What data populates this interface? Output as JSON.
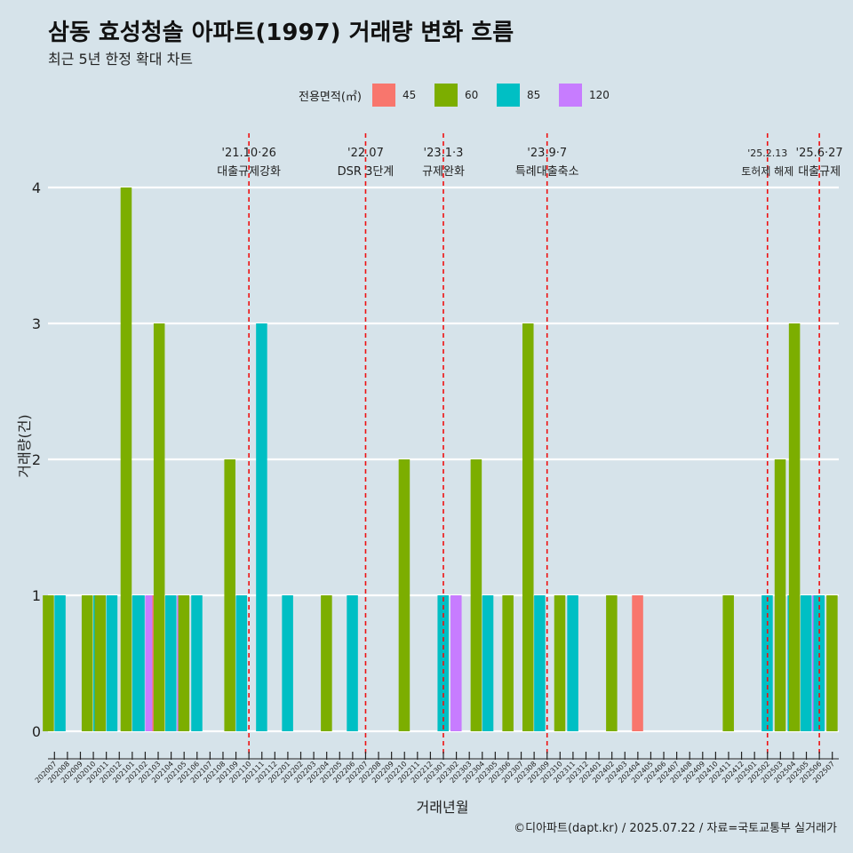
{
  "header": {
    "title": "삼동 효성청솔 아파트(1997) 거래량 변화 흐름",
    "subtitle": "최근 5년 한정 확대 차트"
  },
  "caption": "©디아파트(dapt.kr) / 2025.07.22 / 자료=국토교통부 실거래가",
  "legend": {
    "title": "전용면적(㎡)",
    "items": [
      {
        "label": "45",
        "color": "#F8766D"
      },
      {
        "label": "60",
        "color": "#7CAE00"
      },
      {
        "label": "85",
        "color": "#00BFC4"
      },
      {
        "label": "120",
        "color": "#C77CFF"
      }
    ]
  },
  "chart_data": {
    "type": "bar",
    "xlabel": "거래년월",
    "ylabel": "거래량(건)",
    "ylim": [
      0,
      4
    ],
    "yticks": [
      0,
      1,
      2,
      3,
      4
    ],
    "grid": true,
    "legend_position": "top",
    "categories": [
      "202007",
      "202008",
      "202009",
      "202010",
      "202011",
      "202012",
      "202101",
      "202102",
      "202103",
      "202104",
      "202105",
      "202106",
      "202107",
      "202108",
      "202109",
      "202110",
      "202111",
      "202112",
      "202201",
      "202202",
      "202203",
      "202204",
      "202205",
      "202206",
      "202207",
      "202208",
      "202209",
      "202210",
      "202211",
      "202212",
      "202301",
      "202302",
      "202303",
      "202304",
      "202305",
      "202306",
      "202307",
      "202308",
      "202309",
      "202310",
      "202311",
      "202312",
      "202401",
      "202402",
      "202403",
      "202404",
      "202405",
      "202406",
      "202407",
      "202408",
      "202409",
      "202410",
      "202411",
      "202412",
      "202501",
      "202502",
      "202503",
      "202504",
      "202505",
      "202506",
      "202507"
    ],
    "series": [
      {
        "name": "45",
        "color": "#F8766D",
        "values": [
          0,
          0,
          0,
          0,
          0,
          0,
          0,
          0,
          1,
          0,
          0,
          0,
          0,
          0,
          0,
          0,
          0,
          0,
          0,
          0,
          0,
          0,
          0,
          0,
          0,
          0,
          0,
          0,
          0,
          0,
          0,
          0,
          0,
          0,
          0,
          0,
          0,
          0,
          0,
          0,
          0,
          0,
          0,
          0,
          0,
          1,
          0,
          0,
          0,
          0,
          0,
          0,
          0,
          0,
          0,
          0,
          0,
          0,
          0,
          0,
          0
        ]
      },
      {
        "name": "60",
        "color": "#7CAE00",
        "values": [
          1,
          0,
          0,
          1,
          1,
          0,
          4,
          0,
          0,
          3,
          1,
          0,
          0,
          0,
          2,
          0,
          0,
          0,
          0,
          0,
          0,
          1,
          0,
          0,
          0,
          0,
          0,
          2,
          0,
          0,
          0,
          0,
          0,
          2,
          0,
          1,
          0,
          3,
          0,
          1,
          0,
          0,
          0,
          1,
          0,
          0,
          0,
          0,
          0,
          0,
          0,
          0,
          1,
          0,
          0,
          0,
          2,
          0,
          3,
          0,
          1
        ]
      },
      {
        "name": "85",
        "color": "#00BFC4",
        "values": [
          1,
          0,
          0,
          1,
          1,
          0,
          1,
          1,
          0,
          1,
          0,
          1,
          0,
          0,
          1,
          0,
          3,
          0,
          1,
          0,
          0,
          0,
          0,
          1,
          0,
          0,
          0,
          0,
          0,
          0,
          1,
          0,
          0,
          1,
          0,
          0,
          0,
          1,
          0,
          0,
          1,
          0,
          0,
          0,
          0,
          0,
          0,
          0,
          0,
          0,
          0,
          0,
          0,
          0,
          0,
          1,
          0,
          1,
          1,
          1,
          0
        ]
      },
      {
        "name": "120",
        "color": "#C77CFF",
        "values": [
          0,
          0,
          0,
          0,
          0,
          0,
          0,
          1,
          0,
          1,
          0,
          0,
          0,
          0,
          0,
          0,
          0,
          0,
          0,
          0,
          0,
          0,
          0,
          0,
          0,
          0,
          0,
          0,
          0,
          0,
          0,
          1,
          0,
          0,
          0,
          0,
          0,
          0,
          0,
          0,
          0,
          0,
          0,
          0,
          0,
          0,
          0,
          0,
          0,
          0,
          0,
          0,
          0,
          0,
          0,
          0,
          0,
          0,
          1,
          0,
          0
        ]
      }
    ],
    "annotations": [
      {
        "x": "202110",
        "date": "'21.10·26",
        "label": "대출규제강화"
      },
      {
        "x": "202207",
        "date": "'22.07",
        "label": "DSR 3단계"
      },
      {
        "x": "202301",
        "date": "'23.1·3",
        "label": "규제완화"
      },
      {
        "x": "202309",
        "date": "'23.9·7",
        "label": "특례대출축소"
      },
      {
        "x": "202502",
        "date": "'25.2.13",
        "label": "토허제 해제"
      },
      {
        "x": "202506",
        "date": "'25.6·27",
        "label": "대출규제"
      }
    ]
  }
}
